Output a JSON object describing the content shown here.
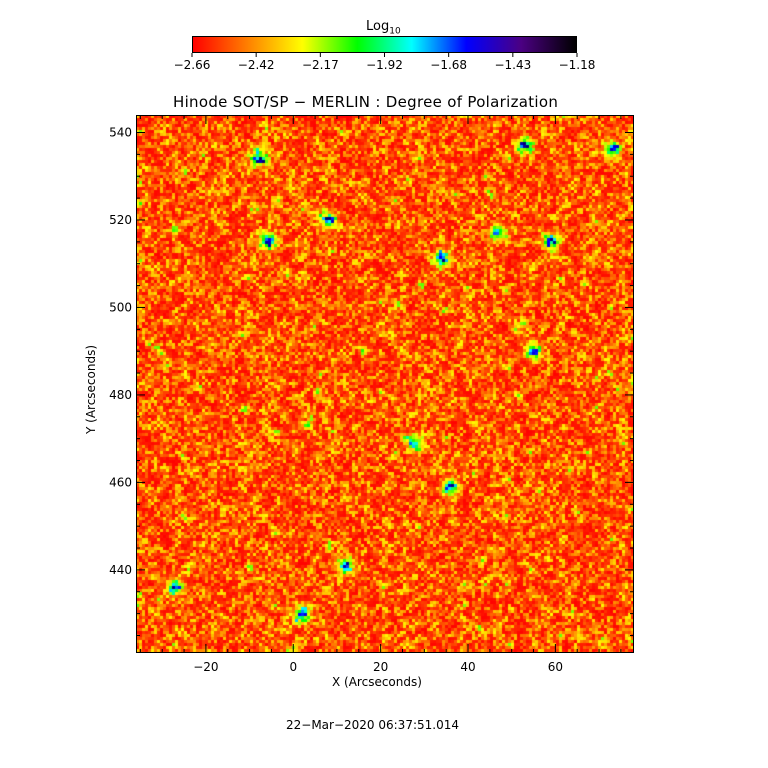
{
  "colorbar": {
    "label_main": "Log",
    "label_sub": "10",
    "tick_labels": [
      "−2.66",
      "−2.42",
      "−2.17",
      "−1.92",
      "−1.68",
      "−1.43",
      "−1.18"
    ],
    "range": [
      -2.66,
      -1.18
    ],
    "colors": [
      "#ff0000",
      "#ff8000",
      "#ffff00",
      "#00ff00",
      "#00ffff",
      "#0000ff",
      "#4b0082",
      "#000000"
    ]
  },
  "chart_data": {
    "type": "heatmap",
    "title": "Hinode SOT/SP − MERLIN : Degree of Polarization",
    "xlabel": "X (Arcseconds)",
    "ylabel": "Y (Arcseconds)",
    "xlim": [
      -36,
      78
    ],
    "ylim": [
      421,
      544
    ],
    "x_ticks": [
      -20,
      0,
      20,
      40,
      60
    ],
    "y_ticks": [
      440,
      460,
      480,
      500,
      520,
      540
    ],
    "x_tick_labels": [
      "−20",
      "0",
      "20",
      "40",
      "60"
    ],
    "y_tick_labels": [
      "440",
      "460",
      "480",
      "500",
      "520",
      "540"
    ],
    "value_range": [
      -2.66,
      -1.18
    ],
    "high_polarization_patches": [
      {
        "x": 36,
        "y": 459
      },
      {
        "x": 59,
        "y": 515
      },
      {
        "x": -8,
        "y": 534
      },
      {
        "x": 53,
        "y": 537
      },
      {
        "x": 73,
        "y": 536
      },
      {
        "x": 34,
        "y": 511
      },
      {
        "x": 8,
        "y": 520
      },
      {
        "x": -6,
        "y": 515
      },
      {
        "x": 28,
        "y": 469
      },
      {
        "x": 55,
        "y": 490
      },
      {
        "x": 12,
        "y": 441
      },
      {
        "x": -27,
        "y": 436
      },
      {
        "x": 2,
        "y": 430
      },
      {
        "x": 47,
        "y": 517
      }
    ]
  },
  "footer": {
    "timestamp": "22−Mar−2020 06:37:51.014"
  }
}
